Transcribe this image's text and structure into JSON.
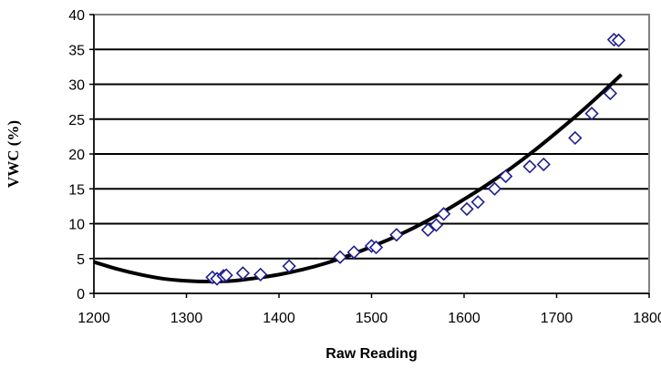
{
  "chart_data": {
    "type": "scatter",
    "xlabel": "Raw Reading",
    "ylabel": "VWC (%)",
    "xlim": [
      1200,
      1800
    ],
    "ylim": [
      0,
      40
    ],
    "x_ticks": [
      "1200",
      "1300",
      "1400",
      "1500",
      "1600",
      "1700",
      "1800"
    ],
    "y_ticks": [
      "0",
      "5",
      "10",
      "15",
      "20",
      "25",
      "30",
      "35",
      "40"
    ],
    "grid": "horizontal",
    "legend": "none",
    "series": [
      {
        "kind": "points",
        "marker": "diamond-open",
        "color": "#1f1f8f",
        "x": [
          1328,
          1333,
          1340,
          1343,
          1361,
          1380,
          1411,
          1466,
          1481,
          1500,
          1505,
          1527,
          1561,
          1570,
          1578,
          1603,
          1615,
          1633,
          1645,
          1671,
          1686,
          1720,
          1738,
          1758,
          1762,
          1767
        ],
        "y": [
          2.3,
          2.1,
          2.5,
          2.6,
          2.9,
          2.7,
          3.9,
          5.2,
          5.9,
          6.8,
          6.6,
          8.4,
          9.1,
          9.8,
          11.4,
          12.1,
          13.1,
          15.0,
          16.8,
          18.2,
          18.5,
          22.3,
          25.8,
          28.7,
          36.4,
          36.3
        ]
      },
      {
        "kind": "curve",
        "color": "#000000",
        "x": [
          1200,
          1225,
          1250,
          1275,
          1300,
          1325,
          1350,
          1375,
          1400,
          1425,
          1450,
          1475,
          1500,
          1525,
          1550,
          1575,
          1600,
          1625,
          1650,
          1675,
          1700,
          1725,
          1750,
          1770
        ],
        "y": [
          4.5,
          3.5,
          2.7,
          2.1,
          1.8,
          1.7,
          1.8,
          2.2,
          2.7,
          3.4,
          4.3,
          5.4,
          6.7,
          8.1,
          9.7,
          11.5,
          13.5,
          15.6,
          17.9,
          20.4,
          23.1,
          25.9,
          28.9,
          31.4
        ]
      }
    ]
  }
}
